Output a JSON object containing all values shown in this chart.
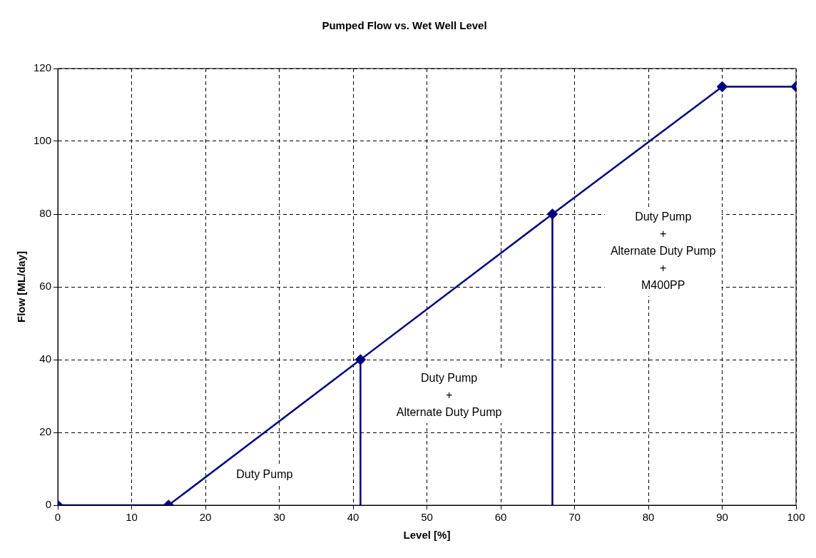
{
  "chart_data": {
    "type": "line",
    "title": "Pumped Flow vs. Wet Well Level",
    "xlabel": "Level [%]",
    "ylabel": "Flow [ML/day]",
    "xlim": [
      0,
      100
    ],
    "xticks": [
      0,
      10,
      20,
      30,
      40,
      50,
      60,
      70,
      80,
      90,
      100
    ],
    "ylim": [
      0,
      120
    ],
    "yticks": [
      0,
      20,
      40,
      60,
      80,
      100,
      120
    ],
    "grid": true,
    "legend": false,
    "marker": "diamond",
    "line_style": "solid",
    "series": [
      {
        "color": "#000080",
        "x": [
          0,
          15,
          41,
          67,
          90,
          100
        ],
        "values": [
          0,
          0,
          40,
          80,
          115,
          115
        ]
      },
      {
        "color": "#000080",
        "x": [
          41,
          41
        ],
        "values": [
          0,
          40
        ],
        "marker": "none"
      },
      {
        "color": "#000080",
        "x": [
          67,
          67
        ],
        "values": [
          0,
          80
        ],
        "marker": "none"
      }
    ],
    "annotations": [
      "Duty Pump",
      "Duty Pump\n+\nAlternate Duty Pump",
      "Duty Pump\n+\nAlternate Duty Pump\n+\nM400PP"
    ]
  }
}
